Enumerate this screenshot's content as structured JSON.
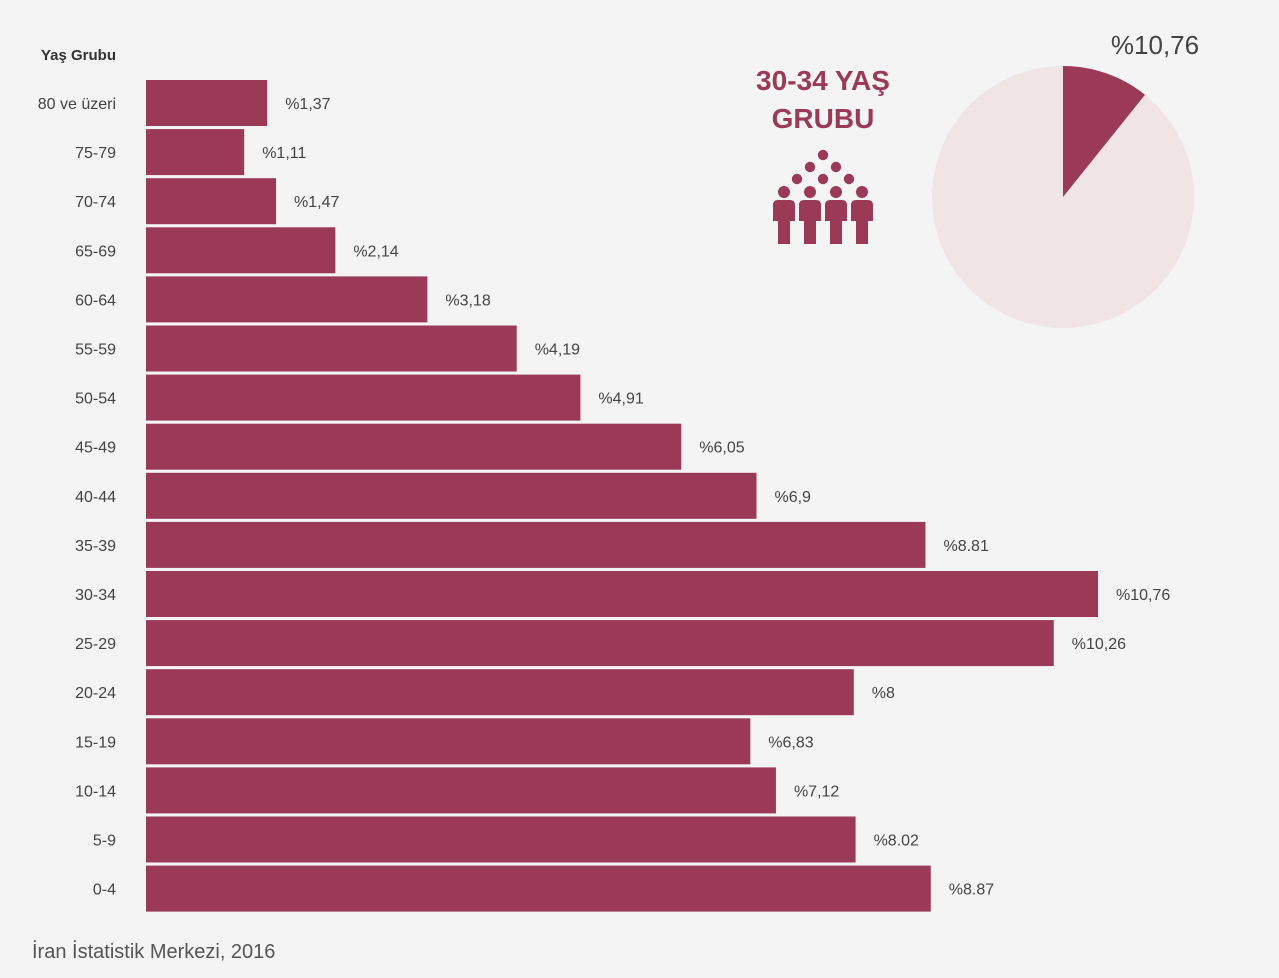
{
  "colors": {
    "bar": "#9a3a56",
    "pie_rest": "#f0e4e4",
    "background": "#f4f4f4"
  },
  "chart_data": {
    "type": "bar",
    "orientation": "horizontal",
    "ylabel": "Yaş Grubu",
    "categories": [
      "80 ve üzeri",
      "75-79",
      "70-74",
      "65-69",
      "60-64",
      "55-59",
      "50-54",
      "45-49",
      "40-44",
      "35-39",
      "30-34",
      "25-29",
      "20-24",
      "15-19",
      "10-14",
      "5-9",
      "0-4"
    ],
    "values": [
      1.37,
      1.11,
      1.47,
      2.14,
      3.18,
      4.19,
      4.91,
      6.05,
      6.9,
      8.81,
      10.76,
      10.26,
      8,
      6.83,
      7.12,
      8.02,
      8.87
    ],
    "data_labels": [
      "%1,37",
      "%1,11",
      "%1,47",
      "%2,14",
      "%3,18",
      "%4,19",
      "%4,91",
      "%6,05",
      "%6,9",
      "%8.81",
      "%10,76",
      "%10,26",
      "%8",
      "%6,83",
      "%7,12",
      "%8.02",
      "%8.87"
    ],
    "xlim": [
      0,
      11.5
    ],
    "grid": false
  },
  "highlight": {
    "title_line1": "30-34 YAŞ",
    "title_line2": "GRUBU",
    "icon": "people-group-icon",
    "pie": {
      "type": "pie",
      "value": 10.76,
      "label": "%10,76"
    }
  },
  "source": "İran İstatistik Merkezi, 2016"
}
